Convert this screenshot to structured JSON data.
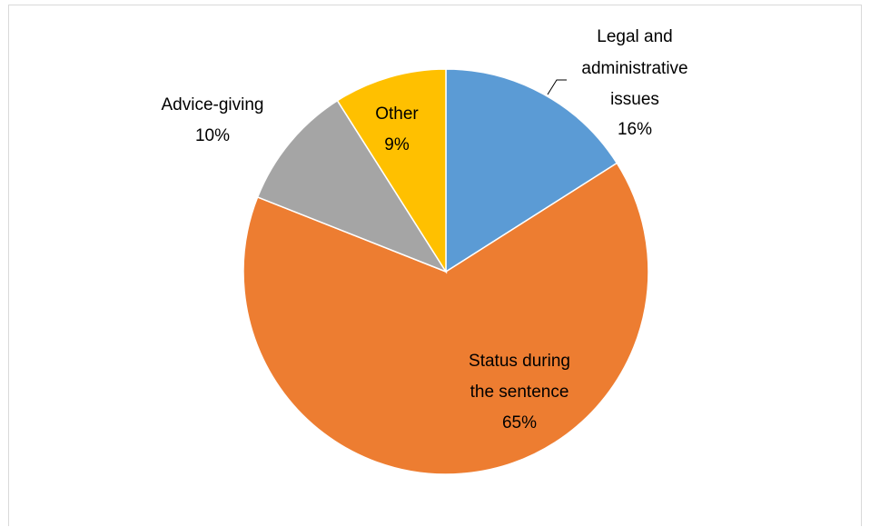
{
  "chart_data": {
    "type": "pie",
    "title": "",
    "slices": [
      {
        "label_lines": [
          "Legal and",
          "administrative",
          "issues"
        ],
        "percent_label": "16%",
        "value": 16,
        "color": "#5b9bd5"
      },
      {
        "label_lines": [
          "Status during",
          "the sentence"
        ],
        "percent_label": "65%",
        "value": 65,
        "color": "#ed7d31"
      },
      {
        "label_lines": [
          "Advice-giving"
        ],
        "percent_label": "10%",
        "value": 10,
        "color": "#a5a5a5"
      },
      {
        "label_lines": [
          "Other"
        ],
        "percent_label": "9%",
        "value": 9,
        "color": "#ffc000"
      }
    ],
    "start_angle_deg": 0,
    "direction": "clockwise",
    "legend": "none"
  }
}
